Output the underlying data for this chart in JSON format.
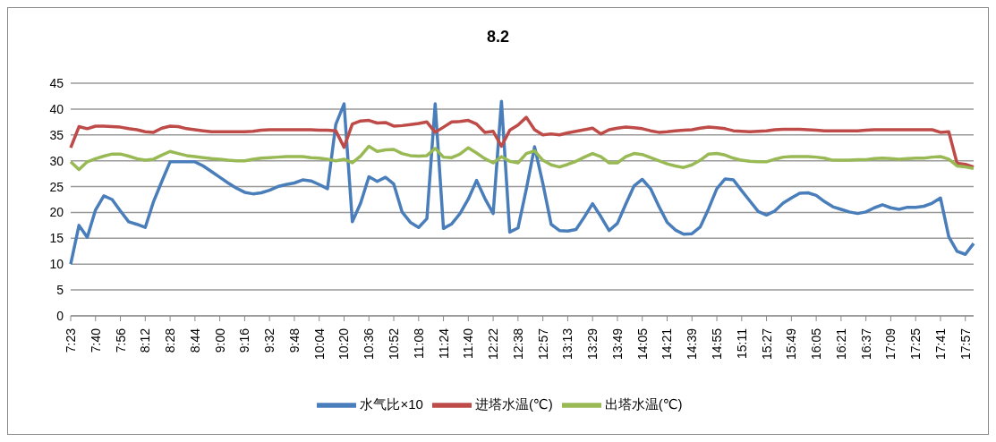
{
  "chart_data": {
    "type": "line",
    "title": "8.2",
    "marker": "none",
    "line_style": "solid",
    "grid": "y",
    "legend": "bottom",
    "categories": [
      "7:23",
      null,
      null,
      "7:40",
      null,
      null,
      "7:56",
      null,
      null,
      "8:12",
      null,
      null,
      "8:28",
      null,
      null,
      "8:44",
      null,
      null,
      "9:00",
      null,
      null,
      "9:16",
      null,
      null,
      "9:32",
      null,
      null,
      "9:48",
      null,
      null,
      "10:04",
      null,
      null,
      "10:20",
      null,
      null,
      "10:36",
      null,
      null,
      "10:52",
      null,
      null,
      "11:08",
      null,
      null,
      "11:24",
      null,
      null,
      "11:40",
      null,
      null,
      "12:22",
      null,
      null,
      "12:38",
      null,
      null,
      "12:57",
      null,
      null,
      "13:13",
      null,
      null,
      "13:29",
      null,
      null,
      "13:49",
      null,
      null,
      "14:05",
      null,
      null,
      "14:21",
      null,
      null,
      "14:39",
      null,
      null,
      "14:55",
      null,
      null,
      "15:11",
      null,
      null,
      "15:27",
      null,
      null,
      "15:49",
      null,
      null,
      "16:05",
      null,
      null,
      "16:21",
      null,
      null,
      "16:37",
      null,
      null,
      "17:09",
      null,
      null,
      "17:25",
      null,
      null,
      "17:41",
      null,
      null,
      "17:57",
      null
    ],
    "ylim": [
      0,
      45
    ],
    "yticks": [
      0,
      5,
      10,
      15,
      20,
      25,
      30,
      35,
      40,
      45
    ],
    "series": [
      {
        "name": "水气比×10",
        "color": "#4a7ebb",
        "values": [
          10,
          17.5,
          15.2,
          20.5,
          23.2,
          22.5,
          20.3,
          18.2,
          17.7,
          17.1,
          22.1,
          26,
          29.8,
          29.8,
          29.8,
          29.8,
          29,
          27.9,
          26.8,
          25.7,
          24.7,
          23.9,
          23.6,
          23.8,
          24.3,
          25,
          25.4,
          25.7,
          26.3,
          26.1,
          25.4,
          24.6,
          37,
          41,
          18.2,
          21.8,
          26.9,
          26,
          26.8,
          25.5,
          20.1,
          18.1,
          17.1,
          18.8,
          41,
          16.9,
          17.8,
          19.8,
          22.6,
          26.2,
          22.7,
          19.8,
          41.5,
          16.2,
          17,
          24.5,
          32.7,
          25.6,
          17.7,
          16.5,
          16.4,
          16.7,
          19.1,
          21.7,
          19.2,
          16.5,
          17.9,
          21.6,
          25.1,
          26.4,
          24.6,
          21.2,
          18.1,
          16.6,
          15.8,
          15.9,
          17.2,
          20.7,
          24.6,
          26.5,
          26.3,
          24.2,
          22.2,
          20.2,
          19.5,
          20.3,
          21.8,
          22.8,
          23.7,
          23.8,
          23.3,
          22.1,
          21.1,
          20.6,
          20.1,
          19.8,
          20.1,
          20.9,
          21.5,
          20.9,
          20.6,
          21,
          21,
          21.2,
          21.8,
          22.8,
          15.3,
          12.5,
          11.9,
          14
        ]
      },
      {
        "name": "进塔水温(℃)",
        "color": "#be4b48",
        "values": [
          32.5,
          36.6,
          36.2,
          36.7,
          36.7,
          36.6,
          36.5,
          36.2,
          36,
          35.6,
          35.5,
          36.3,
          36.7,
          36.6,
          36.2,
          36,
          35.8,
          35.6,
          35.6,
          35.6,
          35.6,
          35.6,
          35.7,
          35.9,
          36,
          36,
          36,
          36,
          36,
          36,
          35.9,
          35.9,
          35.8,
          32.6,
          37.1,
          37.7,
          37.8,
          37.3,
          37.4,
          36.7,
          36.8,
          37,
          37.2,
          37.5,
          35.5,
          36.5,
          37.5,
          37.6,
          37.8,
          37.1,
          35.5,
          35.7,
          32.8,
          35.9,
          36.9,
          38.4,
          36,
          35,
          35.2,
          35,
          35.4,
          35.7,
          36,
          36.3,
          35.2,
          36,
          36.3,
          36.5,
          36.4,
          36.2,
          35.8,
          35.5,
          35.6,
          35.8,
          35.9,
          36,
          36.3,
          36.5,
          36.4,
          36.2,
          35.8,
          35.7,
          35.6,
          35.7,
          35.8,
          36,
          36.1,
          36.1,
          36.1,
          36,
          35.9,
          35.8,
          35.8,
          35.8,
          35.8,
          35.8,
          35.9,
          36,
          36,
          36,
          36,
          36,
          36,
          36,
          36,
          35.5,
          35.6,
          29.5,
          29.3,
          28.8
        ]
      },
      {
        "name": "出塔水温(℃)",
        "color": "#98b954",
        "values": [
          29.8,
          28.3,
          29.8,
          30.4,
          30.9,
          31.3,
          31.3,
          30.9,
          30.4,
          30.1,
          30.3,
          31.1,
          31.8,
          31.4,
          31,
          30.8,
          30.6,
          30.4,
          30.3,
          30.1,
          30,
          30,
          30.3,
          30.5,
          30.6,
          30.7,
          30.8,
          30.8,
          30.8,
          30.6,
          30.5,
          30.3,
          30,
          30.3,
          29.6,
          30.9,
          32.8,
          31.8,
          32.1,
          32.2,
          31.4,
          31,
          30.9,
          31,
          32.4,
          30.7,
          30.6,
          31.3,
          32.5,
          31.5,
          30.4,
          29.6,
          30.8,
          29.9,
          29.6,
          31.4,
          31.9,
          30.1,
          29.2,
          28.8,
          29.3,
          29.9,
          30.7,
          31.4,
          30.8,
          29.6,
          29.6,
          30.8,
          31.4,
          31.2,
          30.6,
          30,
          29.4,
          29,
          28.7,
          29.2,
          30.1,
          31.3,
          31.4,
          31.1,
          30.5,
          30.1,
          29.9,
          29.8,
          29.8,
          30.3,
          30.7,
          30.8,
          30.8,
          30.8,
          30.7,
          30.5,
          30.1,
          30.1,
          30.1,
          30.2,
          30.2,
          30.4,
          30.5,
          30.4,
          30.3,
          30.4,
          30.5,
          30.5,
          30.7,
          30.8,
          30.3,
          29,
          28.8,
          28.5
        ]
      }
    ]
  }
}
